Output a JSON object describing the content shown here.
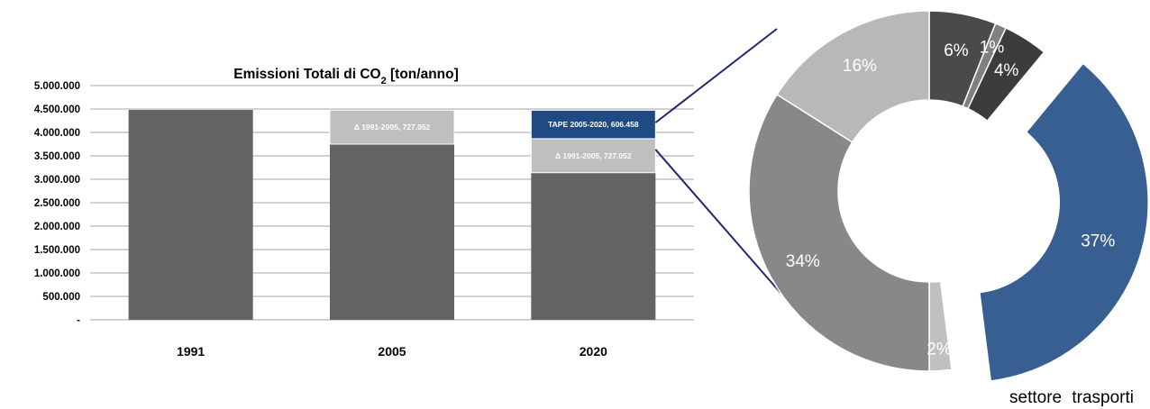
{
  "chart_data": [
    {
      "type": "bar",
      "stacked": true,
      "title": "Emissioni Totali  di CO",
      "title_subscript": "2",
      "title_suffix": " [ton/anno]",
      "categories": [
        "1991",
        "2005",
        "2020"
      ],
      "ylim": [
        0,
        5000000
      ],
      "y_ticks": [
        "-",
        "500.000",
        "1.000.000",
        "1.500.000",
        "2.000.000",
        "2.500.000",
        "3.000.000",
        "3.500.000",
        "4.000.000",
        "4.500.000",
        "5.000.000"
      ],
      "y_tick_values": [
        0,
        500000,
        1000000,
        1500000,
        2000000,
        2500000,
        3000000,
        3500000,
        4000000,
        4500000,
        5000000
      ],
      "grid": true,
      "series": [
        {
          "values": [
            4480000,
            3750000,
            3140000
          ],
          "color": "#636363"
        },
        {
          "values": [
            0,
            727052,
            727052
          ],
          "color": "#bfbfbf",
          "labels": [
            "",
            "Δ 1991-2005,  727.052",
            "Δ 1991-2005,  727.052"
          ]
        },
        {
          "values": [
            0,
            0,
            606458
          ],
          "color": "#1f4a82",
          "labels": [
            "",
            "",
            "TAPE 2005-2020,  606.458"
          ]
        }
      ]
    },
    {
      "type": "pie",
      "donut": true,
      "slices": [
        {
          "label": "6%",
          "value": 6,
          "color": "#4a4a4a"
        },
        {
          "label": "1%",
          "value": 1,
          "color": "#808080"
        },
        {
          "label": "4%",
          "value": 4,
          "color": "#3c3c3c"
        },
        {
          "label": "37%",
          "value": 37,
          "color": "#375f92",
          "exploded": true
        },
        {
          "label": "2%",
          "value": 2,
          "color": "#c0c0c0"
        },
        {
          "label": "34%",
          "value": 34,
          "color": "#888888"
        },
        {
          "label": "16%",
          "value": 16,
          "color": "#b8b8b8"
        }
      ],
      "caption": "settore trasporti"
    }
  ],
  "colors": {
    "connector": "#1f2a6e",
    "gridline": "#a6a6a6"
  }
}
